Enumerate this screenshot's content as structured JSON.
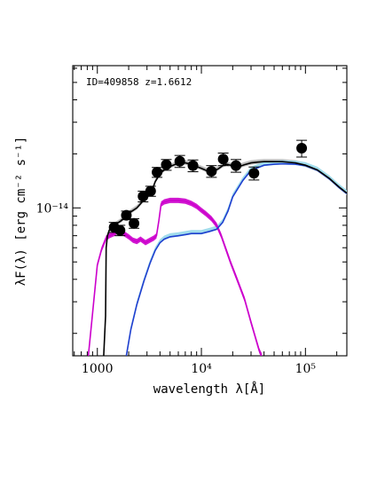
{
  "chart_data": {
    "type": "line",
    "annotation": "ID=409858 z=1.6612",
    "xlabel": "wavelength λ[Å]",
    "ylabel": "λF(λ) [erg cm⁻² s⁻¹]",
    "xscale": "log",
    "yscale": "log",
    "xlim": [
      580,
      250000
    ],
    "ylim": [
      1.5e-15,
      6.2e-14
    ],
    "x_tick_labels": [
      {
        "value": 1000,
        "label": "1000"
      },
      {
        "value": 10000,
        "label": "10⁴"
      },
      {
        "value": 100000,
        "label": "10⁵"
      }
    ],
    "y_tick_labels": [
      {
        "value": 1e-14,
        "label": "10⁻¹⁴"
      }
    ],
    "grid": false,
    "legend": "none",
    "colors": {
      "stellar": "#cc00cc",
      "dust": "#1f3fcf",
      "dust_band": "#a0dcec",
      "total": "#000000",
      "total_band": "#bdbdbd",
      "points": "#000000"
    },
    "observed_points": [
      {
        "x": 1450,
        "y": 7.8e-15,
        "yerr": 5e-16
      },
      {
        "x": 1650,
        "y": 7.5e-15,
        "yerr": 5e-16
      },
      {
        "x": 1900,
        "y": 9.1e-15,
        "yerr": 5e-16
      },
      {
        "x": 2250,
        "y": 8.2e-15,
        "yerr": 5e-16
      },
      {
        "x": 2750,
        "y": 1.16e-14,
        "yerr": 8e-16
      },
      {
        "x": 3250,
        "y": 1.24e-14,
        "yerr": 8e-16
      },
      {
        "x": 3750,
        "y": 1.58e-14,
        "yerr": 1e-15
      },
      {
        "x": 4600,
        "y": 1.74e-14,
        "yerr": 1.2e-15
      },
      {
        "x": 6200,
        "y": 1.82e-14,
        "yerr": 1.4e-15
      },
      {
        "x": 8300,
        "y": 1.72e-14,
        "yerr": 1.3e-15
      },
      {
        "x": 12500,
        "y": 1.6e-14,
        "yerr": 1.2e-15
      },
      {
        "x": 16200,
        "y": 1.87e-14,
        "yerr": 1.5e-15
      },
      {
        "x": 21500,
        "y": 1.72e-14,
        "yerr": 1.4e-15
      },
      {
        "x": 32000,
        "y": 1.56e-14,
        "yerr": 1.3e-15
      },
      {
        "x": 92000,
        "y": 2.15e-14,
        "yerr": 2.3e-15
      }
    ],
    "series": [
      {
        "key": "stellar",
        "x": [
          820,
          900,
          1000,
          1100,
          1215,
          1300,
          1450,
          1600,
          1800,
          2000,
          2200,
          2400,
          2600,
          2900,
          3200,
          3500,
          3700,
          3900,
          4100,
          4400,
          5000,
          6000,
          7000,
          8000,
          9000,
          10000,
          11000,
          12500,
          14000,
          15500,
          17000,
          19000,
          22000,
          26000,
          30000,
          33000,
          36000,
          38000
        ],
        "y": [
          1.5e-15,
          2.6e-15,
          4.8e-15,
          5.9e-15,
          6.8e-15,
          7e-15,
          7.2e-15,
          7.5e-15,
          7.2e-15,
          6.9e-15,
          6.6e-15,
          6.5e-15,
          6.7e-15,
          6.4e-15,
          6.6e-15,
          6.8e-15,
          7e-15,
          8.5e-15,
          1.05e-14,
          1.08e-14,
          1.1e-14,
          1.1e-14,
          1.09e-14,
          1.06e-14,
          1.02e-14,
          9.7e-15,
          9.3e-15,
          8.7e-15,
          8e-15,
          7e-15,
          6e-15,
          5e-15,
          4e-15,
          3.1e-15,
          2.3e-15,
          1.9e-15,
          1.6e-15,
          1.5e-15
        ]
      },
      {
        "key": "dust",
        "x": [
          1900,
          2100,
          2400,
          2800,
          3200,
          3600,
          4000,
          4400,
          5000,
          6000,
          7000,
          8000,
          10000,
          12000,
          14000,
          16000,
          18000,
          20000,
          25000,
          30000,
          40000,
          50000,
          60000,
          80000,
          100000,
          130000,
          170000,
          210000,
          250000
        ],
        "y": [
          1.5e-15,
          2.1e-15,
          2.9e-15,
          3.9e-15,
          4.9e-15,
          5.8e-15,
          6.4e-15,
          6.7e-15,
          6.9e-15,
          7e-15,
          7.1e-15,
          7.2e-15,
          7.2e-15,
          7.4e-15,
          7.6e-15,
          8.3e-15,
          9.6e-15,
          1.15e-14,
          1.42e-14,
          1.62e-14,
          1.73e-14,
          1.75e-14,
          1.76e-14,
          1.75e-14,
          1.72e-14,
          1.62e-14,
          1.45e-14,
          1.3e-14,
          1.2e-14
        ]
      },
      {
        "key": "total",
        "x": [
          1150,
          1200,
          1215,
          1250,
          1300,
          1400,
          1500,
          1700,
          1900,
          2100,
          2400,
          2700,
          3000,
          3300,
          3600,
          4000,
          4500,
          5000,
          5500,
          6000,
          7000,
          8000,
          9000,
          10000,
          11000,
          12000,
          13000,
          14500,
          16000,
          17500,
          19000,
          21000,
          23000,
          26000,
          30000,
          35000,
          40000,
          50000,
          60000,
          80000,
          100000,
          130000,
          170000,
          210000,
          250000
        ],
        "y": [
          1.5e-15,
          2.5e-15,
          6e-15,
          7e-15,
          7.5e-15,
          7.9e-15,
          8.1e-15,
          8.5e-15,
          9e-15,
          9.5e-15,
          1e-14,
          1.08e-14,
          1.15e-14,
          1.22e-14,
          1.4e-14,
          1.55e-14,
          1.65e-14,
          1.7e-14,
          1.74e-14,
          1.76e-14,
          1.78e-14,
          1.75e-14,
          1.7e-14,
          1.66e-14,
          1.62e-14,
          1.6e-14,
          1.6e-14,
          1.65e-14,
          1.72e-14,
          1.75e-14,
          1.73e-14,
          1.7e-14,
          1.7e-14,
          1.74e-14,
          1.78e-14,
          1.8e-14,
          1.81e-14,
          1.81e-14,
          1.81e-14,
          1.78e-14,
          1.73e-14,
          1.63e-14,
          1.46e-14,
          1.31e-14,
          1.21e-14
        ]
      }
    ]
  }
}
